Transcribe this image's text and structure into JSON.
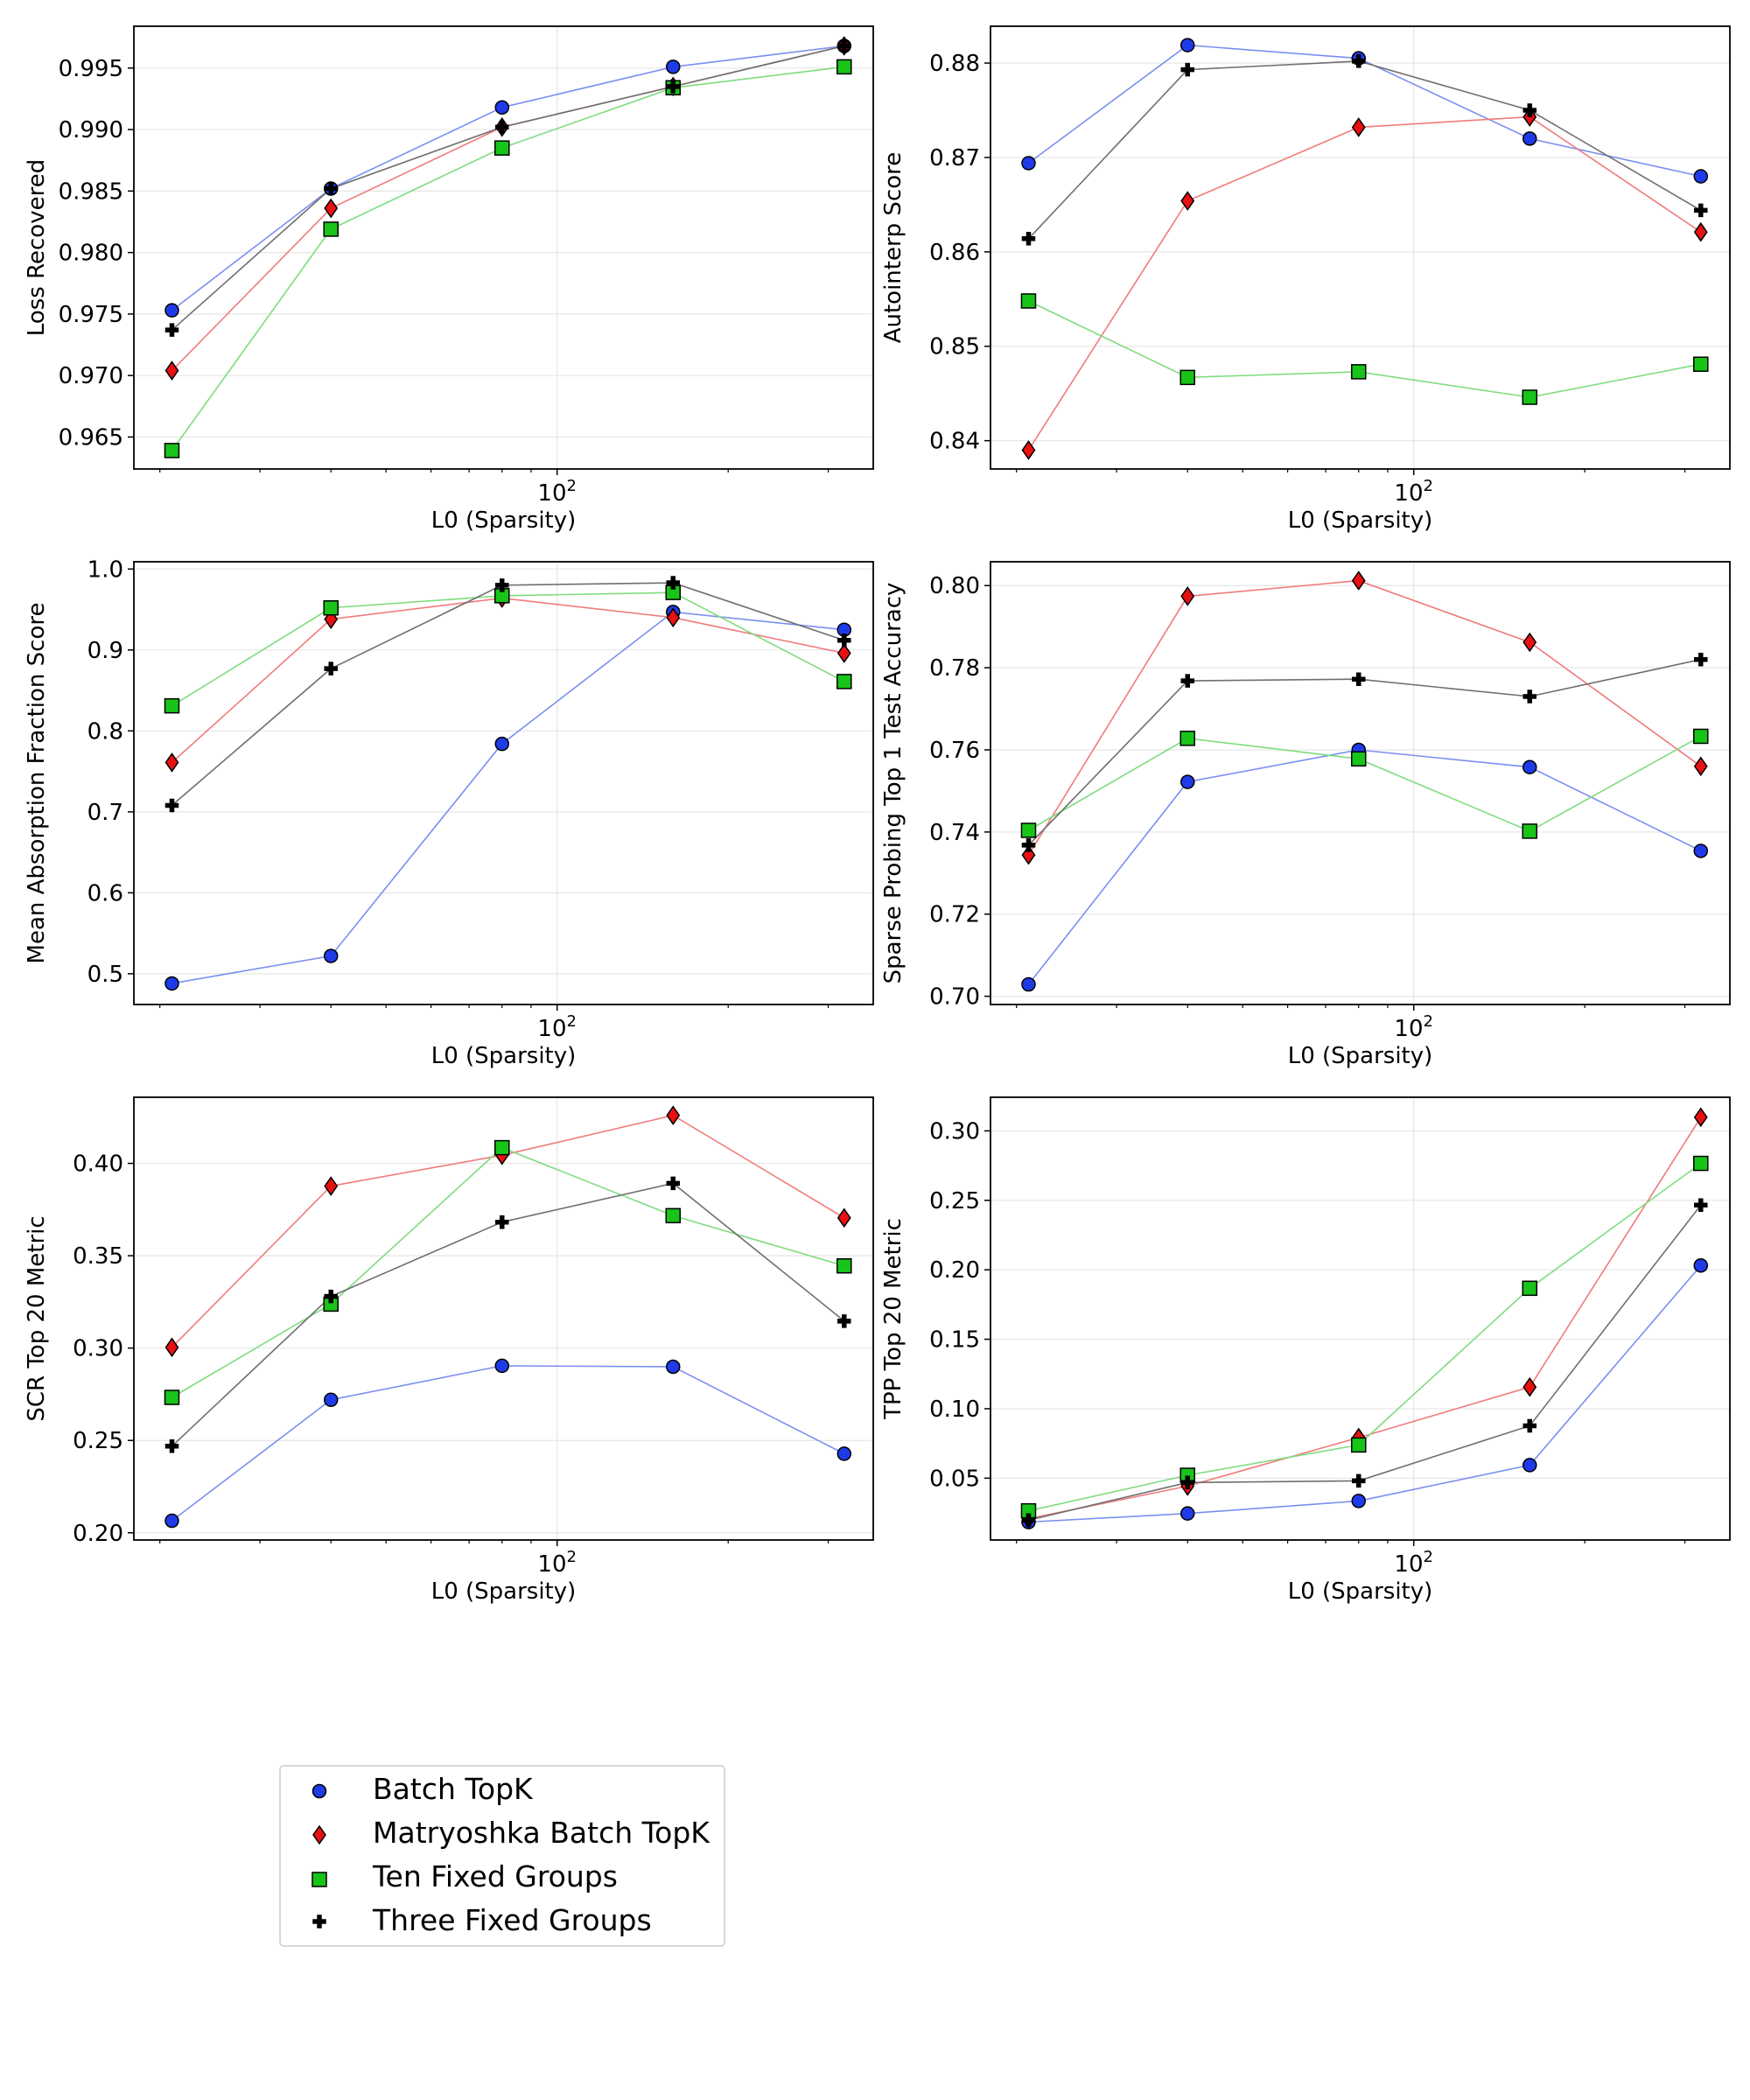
{
  "legend": {
    "location": "lower-left",
    "entries": [
      {
        "name": "Batch TopK",
        "color": "#1f3be8",
        "marker": "circle"
      },
      {
        "name": "Matryoshka Batch TopK",
        "color": "#e81010",
        "marker": "diamond"
      },
      {
        "name": "Ten Fixed Groups",
        "color": "#18c418",
        "marker": "square"
      },
      {
        "name": "Three Fixed Groups",
        "color": "#000000",
        "marker": "plus"
      }
    ]
  },
  "chart_data": [
    {
      "type": "line",
      "xlabel": "L0 (Sparsity)",
      "ylabel": "Loss Recovered",
      "xscale": "log",
      "xlim": [
        18,
        360
      ],
      "ylim": [
        0.9624,
        0.9984
      ],
      "xticks": [
        {
          "value": 100,
          "base": "10",
          "exp": "2"
        }
      ],
      "yticks": [
        "0.965",
        "0.970",
        "0.975",
        "0.980",
        "0.985",
        "0.990",
        "0.995"
      ],
      "grid": true,
      "series": [
        {
          "name": "Batch TopK",
          "x": [
            21,
            40,
            80,
            160,
            320
          ],
          "y": [
            0.9753,
            0.9852,
            0.9918,
            0.9951,
            0.9968
          ]
        },
        {
          "name": "Matryoshka Batch TopK",
          "x": [
            21,
            40,
            80,
            160,
            320
          ],
          "y": [
            0.9704,
            0.9836,
            0.9902,
            0.9935,
            0.9968
          ]
        },
        {
          "name": "Ten Fixed Groups",
          "x": [
            21,
            40,
            80,
            160,
            320
          ],
          "y": [
            0.9639,
            0.9819,
            0.9885,
            0.9934,
            0.9951
          ]
        },
        {
          "name": "Three Fixed Groups",
          "x": [
            21,
            40,
            80,
            160,
            320
          ],
          "y": [
            0.9737,
            0.9852,
            0.9902,
            0.9935,
            0.9968
          ]
        }
      ]
    },
    {
      "type": "line",
      "xlabel": "L0 (Sparsity)",
      "ylabel": "Autointerp Score",
      "xscale": "log",
      "xlim": [
        18,
        360
      ],
      "ylim": [
        0.837,
        0.8839
      ],
      "xticks": [
        {
          "value": 100,
          "base": "10",
          "exp": "2"
        }
      ],
      "yticks": [
        "0.84",
        "0.85",
        "0.86",
        "0.87",
        "0.88"
      ],
      "grid": true,
      "series": [
        {
          "name": "Batch TopK",
          "x": [
            21,
            40,
            80,
            160,
            320
          ],
          "y": [
            0.8694,
            0.8819,
            0.8805,
            0.872,
            0.868
          ]
        },
        {
          "name": "Matryoshka Batch TopK",
          "x": [
            21,
            40,
            80,
            160,
            320
          ],
          "y": [
            0.839,
            0.8654,
            0.8732,
            0.8743,
            0.8621
          ]
        },
        {
          "name": "Ten Fixed Groups",
          "x": [
            21,
            40,
            80,
            160,
            320
          ],
          "y": [
            0.8548,
            0.8467,
            0.8473,
            0.8446,
            0.8481
          ]
        },
        {
          "name": "Three Fixed Groups",
          "x": [
            21,
            40,
            80,
            160,
            320
          ],
          "y": [
            0.8614,
            0.8793,
            0.8802,
            0.875,
            0.8644
          ]
        }
      ]
    },
    {
      "type": "line",
      "xlabel": "L0 (Sparsity)",
      "ylabel": "Mean Absorption Fraction Score",
      "xscale": "log",
      "xlim": [
        18,
        360
      ],
      "ylim": [
        0.462,
        1.009
      ],
      "xticks": [
        {
          "value": 100,
          "base": "10",
          "exp": "2"
        }
      ],
      "yticks": [
        "0.5",
        "0.6",
        "0.7",
        "0.8",
        "0.9",
        "1.0"
      ],
      "grid": true,
      "series": [
        {
          "name": "Batch TopK",
          "x": [
            21,
            40,
            80,
            160,
            320
          ],
          "y": [
            0.488,
            0.522,
            0.784,
            0.947,
            0.925
          ]
        },
        {
          "name": "Matryoshka Batch TopK",
          "x": [
            21,
            40,
            80,
            160,
            320
          ],
          "y": [
            0.761,
            0.938,
            0.964,
            0.94,
            0.896
          ]
        },
        {
          "name": "Ten Fixed Groups",
          "x": [
            21,
            40,
            80,
            160,
            320
          ],
          "y": [
            0.831,
            0.952,
            0.967,
            0.971,
            0.861
          ]
        },
        {
          "name": "Three Fixed Groups",
          "x": [
            21,
            40,
            80,
            160,
            320
          ],
          "y": [
            0.708,
            0.877,
            0.98,
            0.983,
            0.912
          ]
        }
      ]
    },
    {
      "type": "line",
      "xlabel": "L0 (Sparsity)",
      "ylabel": "Sparse Probing Top 1 Test Accuracy",
      "xscale": "log",
      "xlim": [
        18,
        360
      ],
      "ylim": [
        0.698,
        0.8058
      ],
      "xticks": [
        {
          "value": 100,
          "base": "10",
          "exp": "2"
        }
      ],
      "yticks": [
        "0.70",
        "0.72",
        "0.74",
        "0.76",
        "0.78",
        "0.80"
      ],
      "grid": true,
      "series": [
        {
          "name": "Batch TopK",
          "x": [
            21,
            40,
            80,
            160,
            320
          ],
          "y": [
            0.7029,
            0.7522,
            0.76,
            0.7558,
            0.7354
          ]
        },
        {
          "name": "Matryoshka Batch TopK",
          "x": [
            21,
            40,
            80,
            160,
            320
          ],
          "y": [
            0.7344,
            0.7974,
            0.8012,
            0.7862,
            0.756
          ]
        },
        {
          "name": "Ten Fixed Groups",
          "x": [
            21,
            40,
            80,
            160,
            320
          ],
          "y": [
            0.7404,
            0.7628,
            0.7578,
            0.7402,
            0.7633
          ]
        },
        {
          "name": "Three Fixed Groups",
          "x": [
            21,
            40,
            80,
            160,
            320
          ],
          "y": [
            0.7368,
            0.7768,
            0.7772,
            0.773,
            0.782
          ]
        }
      ]
    },
    {
      "type": "line",
      "xlabel": "L0 (Sparsity)",
      "ylabel": "SCR Top 20 Metric",
      "xscale": "log",
      "xlim": [
        18,
        360
      ],
      "ylim": [
        0.1961,
        0.4358
      ],
      "xticks": [
        {
          "value": 100,
          "base": "10",
          "exp": "2"
        }
      ],
      "yticks": [
        "0.20",
        "0.25",
        "0.30",
        "0.35",
        "0.40"
      ],
      "grid": true,
      "series": [
        {
          "name": "Batch TopK",
          "x": [
            21,
            40,
            80,
            160,
            320
          ],
          "y": [
            0.2065,
            0.272,
            0.2904,
            0.2899,
            0.2428
          ]
        },
        {
          "name": "Matryoshka Batch TopK",
          "x": [
            21,
            40,
            80,
            160,
            320
          ],
          "y": [
            0.3004,
            0.3877,
            0.4044,
            0.426,
            0.3705
          ]
        },
        {
          "name": "Ten Fixed Groups",
          "x": [
            21,
            40,
            80,
            160,
            320
          ],
          "y": [
            0.2733,
            0.3238,
            0.4085,
            0.3717,
            0.3445
          ]
        },
        {
          "name": "Three Fixed Groups",
          "x": [
            21,
            40,
            80,
            160,
            320
          ],
          "y": [
            0.2469,
            0.328,
            0.3682,
            0.3892,
            0.3146
          ]
        }
      ]
    },
    {
      "type": "line",
      "xlabel": "L0 (Sparsity)",
      "ylabel": "TPP Top 20 Metric",
      "xscale": "log",
      "xlim": [
        18,
        360
      ],
      "ylim": [
        0.0055,
        0.3242
      ],
      "xticks": [
        {
          "value": 100,
          "base": "10",
          "exp": "2"
        }
      ],
      "yticks": [
        "0.05",
        "0.10",
        "0.15",
        "0.20",
        "0.25",
        "0.30"
      ],
      "grid": true,
      "series": [
        {
          "name": "Batch TopK",
          "x": [
            21,
            40,
            80,
            160,
            320
          ],
          "y": [
            0.0184,
            0.0246,
            0.0336,
            0.0594,
            0.2031
          ]
        },
        {
          "name": "Matryoshka Batch TopK",
          "x": [
            21,
            40,
            80,
            160,
            320
          ],
          "y": [
            0.0208,
            0.0443,
            0.0792,
            0.1156,
            0.3098
          ]
        },
        {
          "name": "Ten Fixed Groups",
          "x": [
            21,
            40,
            80,
            160,
            320
          ],
          "y": [
            0.0265,
            0.0521,
            0.0739,
            0.1867,
            0.2766
          ]
        },
        {
          "name": "Three Fixed Groups",
          "x": [
            21,
            40,
            80,
            160,
            320
          ],
          "y": [
            0.0198,
            0.0469,
            0.0481,
            0.0877,
            0.2466
          ]
        }
      ]
    }
  ]
}
